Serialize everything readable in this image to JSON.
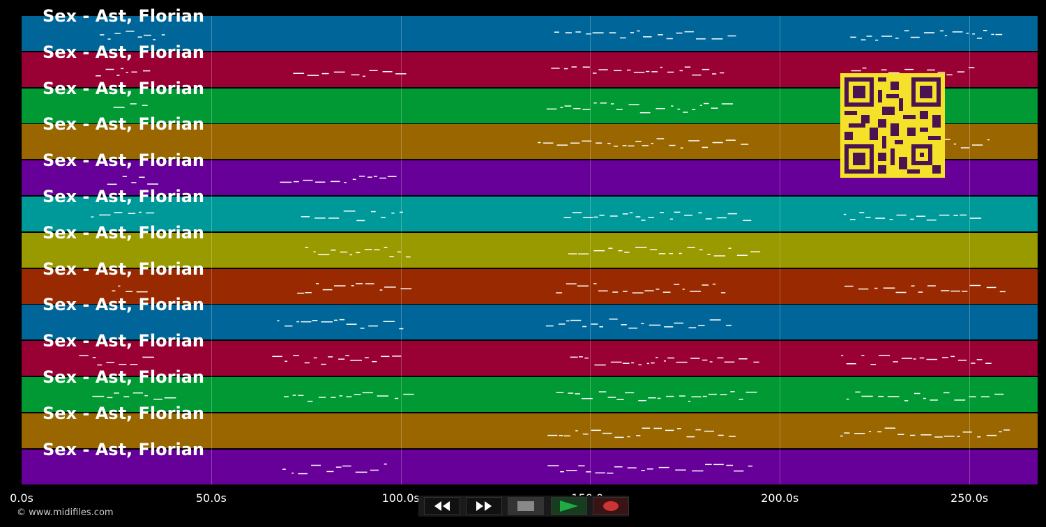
{
  "tracks": [
    {
      "label": "Sex - Ast, Florian",
      "color": "#006699"
    },
    {
      "label": "Sex - Ast, Florian",
      "color": "#990033"
    },
    {
      "label": "Sex - Ast, Florian",
      "color": "#009933"
    },
    {
      "label": "Sex - Ast, Florian",
      "color": "#996600"
    },
    {
      "label": "Sex - Ast, Florian",
      "color": "#660099"
    },
    {
      "label": "Sex - Ast, Florian",
      "color": "#009999"
    },
    {
      "label": "Sex - Ast, Florian",
      "color": "#999900"
    },
    {
      "label": "Sex - Ast, Florian",
      "color": "#992900"
    },
    {
      "label": "Sex - Ast, Florian",
      "color": "#006699"
    },
    {
      "label": "Sex - Ast, Florian",
      "color": "#990033"
    },
    {
      "label": "Sex - Ast, Florian",
      "color": "#009933"
    },
    {
      "label": "Sex - Ast, Florian",
      "color": "#996600"
    },
    {
      "label": "Sex - Ast, Florian",
      "color": "#660099"
    }
  ],
  "axis": {
    "range_seconds": [
      0,
      268
    ],
    "ticks": [
      {
        "label": "0.0s",
        "value": 0
      },
      {
        "label": "50.0s",
        "value": 50
      },
      {
        "label": "100.0s",
        "value": 100
      },
      {
        "label": "150.0s",
        "value": 150
      },
      {
        "label": "200.0s",
        "value": 200
      },
      {
        "label": "250.0s",
        "value": 250
      }
    ]
  },
  "copyright": "© www.midifiles.com",
  "transport": {
    "rewind_icon": "rewind-icon",
    "fastforward_icon": "fast-forward-icon",
    "stop_icon": "stop-icon",
    "play_icon": "play-icon",
    "record_icon": "record-icon",
    "play_color": "#22aa44",
    "record_color": "#cc3333"
  },
  "qr_icon": "qr-code-icon"
}
